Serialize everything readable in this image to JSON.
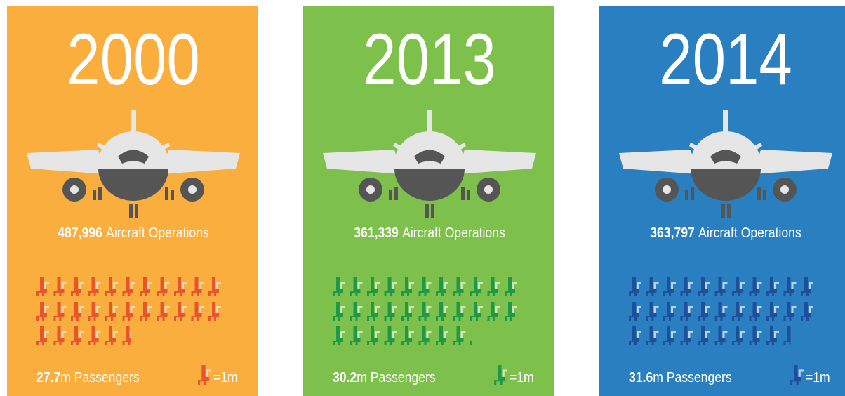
{
  "panels": [
    {
      "year": "2000",
      "operations": "487,996",
      "operations_label": "Aircraft Operations",
      "passengers": 27.7,
      "passengers_label": "m Passengers",
      "color": "#f9ae3e",
      "seat_dark": "#e9542b",
      "seat_light": "#f9d8b4"
    },
    {
      "year": "2013",
      "operations": "361,339",
      "operations_label": "Aircraft Operations",
      "passengers": 30.2,
      "passengers_label": "m Passengers",
      "color": "#7dc04b",
      "seat_dark": "#1e9a47",
      "seat_light": "#cbe6b7"
    },
    {
      "year": "2014",
      "operations": "363,797",
      "operations_label": "Aircraft Operations",
      "passengers": 31.6,
      "passengers_label": "m Passengers",
      "color": "#2a7fc1",
      "seat_dark": "#1d4f9b",
      "seat_light": "#b9d3ee"
    }
  ],
  "legend": "=1m"
}
